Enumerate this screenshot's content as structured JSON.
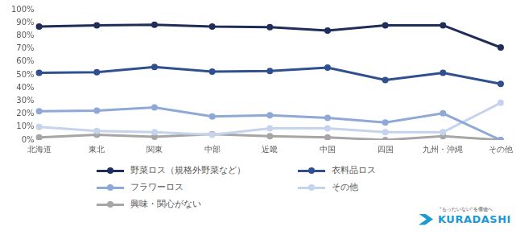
{
  "chart_data": {
    "type": "line",
    "categories": [
      "北海道",
      "東北",
      "関東",
      "中部",
      "近畿",
      "中国",
      "四国",
      "九州・沖縄",
      "その他"
    ],
    "series": [
      {
        "name": "野菜ロス（規格外野菜など）",
        "color": "#1f2d5a",
        "values": [
          87,
          88,
          88.5,
          87,
          86.5,
          84,
          88,
          88,
          71
        ]
      },
      {
        "name": "衣料品ロス",
        "color": "#2f4f8f",
        "values": [
          51.5,
          52,
          56,
          52.5,
          53,
          55.5,
          46,
          51.5,
          43
        ]
      },
      {
        "name": "フラワーロス",
        "color": "#8ea8d8",
        "values": [
          22,
          22.5,
          25,
          18,
          19,
          17,
          13.5,
          20.5,
          0
        ]
      },
      {
        "name": "その他",
        "color": "#c5d3ec",
        "values": [
          10,
          7,
          6,
          4,
          9,
          9,
          6,
          6,
          28.5
        ]
      },
      {
        "name": "興味・関心がない",
        "color": "#a6a6a6",
        "values": [
          2,
          4,
          2.5,
          4.5,
          3,
          2,
          0,
          3,
          0
        ]
      }
    ],
    "ylim": [
      0,
      100
    ],
    "yticks": [
      {
        "value": 0,
        "label": "0%"
      },
      {
        "value": 10,
        "label": "10%"
      },
      {
        "value": 20,
        "label": "20%"
      },
      {
        "value": 30,
        "label": "30%"
      },
      {
        "value": 40,
        "label": "40%"
      },
      {
        "value": 50,
        "label": "50%"
      },
      {
        "value": 60,
        "label": "60%"
      },
      {
        "value": 70,
        "label": "70%"
      },
      {
        "value": 80,
        "label": "80%"
      },
      {
        "value": 90,
        "label": "90%"
      },
      {
        "value": 100,
        "label": "100%"
      }
    ],
    "grid": false,
    "marker": "circle",
    "legend": "bottom",
    "annotations": [
      "\"もったいない\"を価値へ",
      "KURADASHI"
    ]
  }
}
